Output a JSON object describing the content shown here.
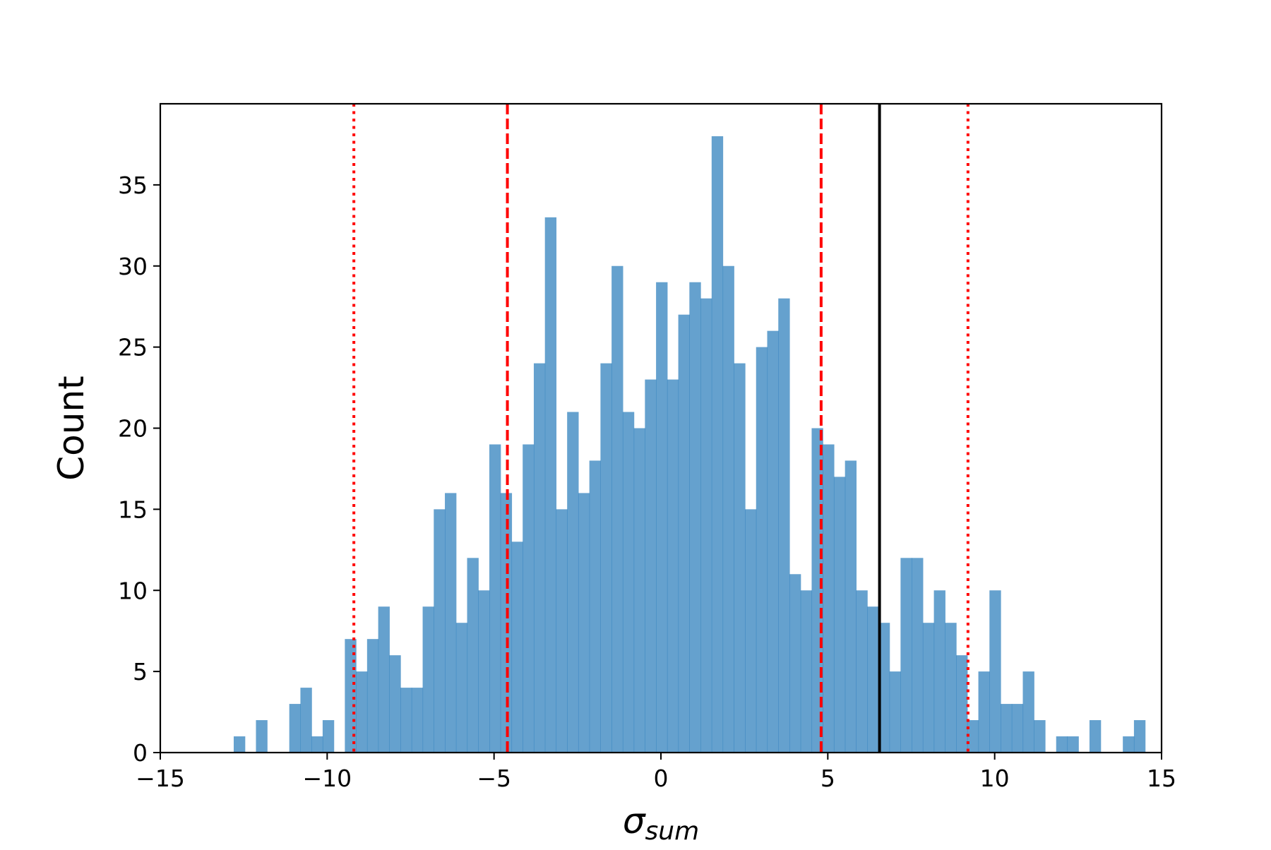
{
  "chart_data": {
    "type": "bar",
    "subtype": "histogram",
    "title": "",
    "xlabel": "σ",
    "xlabel_subscript": "sum",
    "ylabel": "Count",
    "xlim": [
      -15,
      15
    ],
    "ylim": [
      0,
      40
    ],
    "xticks": [
      -15,
      -10,
      -5,
      0,
      5,
      10,
      15
    ],
    "xtick_labels": [
      "−15",
      "−10",
      "−5",
      "0",
      "5",
      "10",
      "15"
    ],
    "yticks": [
      0,
      5,
      10,
      15,
      20,
      25,
      30,
      35
    ],
    "ytick_labels": [
      "0",
      "5",
      "10",
      "15",
      "20",
      "25",
      "30",
      "35"
    ],
    "grid": false,
    "bin_start": -12.8,
    "bin_width": 0.333,
    "counts": [
      1,
      0,
      2,
      0,
      0,
      3,
      4,
      1,
      2,
      0,
      7,
      5,
      7,
      9,
      6,
      4,
      4,
      9,
      15,
      16,
      8,
      12,
      10,
      19,
      16,
      13,
      19,
      24,
      33,
      15,
      21,
      16,
      18,
      24,
      30,
      21,
      20,
      23,
      29,
      23,
      27,
      29,
      28,
      38,
      30,
      24,
      15,
      25,
      26,
      28,
      11,
      10,
      20,
      19,
      17,
      18,
      10,
      9,
      8,
      5,
      12,
      12,
      8,
      10,
      8,
      6,
      2,
      5,
      10,
      3,
      3,
      5,
      2,
      0,
      1,
      1,
      0,
      2,
      0,
      0,
      1,
      2
    ],
    "bar_color": "#3182bd",
    "bar_opacity": 0.75,
    "reference_lines": [
      {
        "x": -9.2,
        "style": "dotted",
        "color": "#ff0000"
      },
      {
        "x": -4.6,
        "style": "dashed",
        "color": "#ff0000"
      },
      {
        "x": 4.8,
        "style": "dashed",
        "color": "#ff0000"
      },
      {
        "x": 6.55,
        "style": "solid",
        "color": "#000000"
      },
      {
        "x": 9.2,
        "style": "dotted",
        "color": "#ff0000"
      }
    ]
  }
}
